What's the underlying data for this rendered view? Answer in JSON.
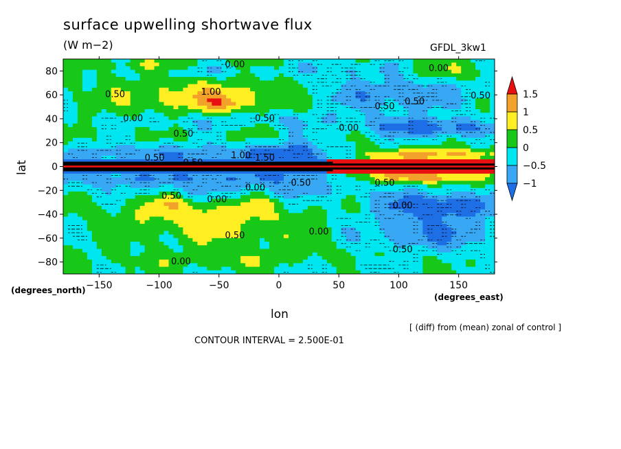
{
  "chart_data": {
    "type": "heatmap",
    "title": "surface upwelling shortwave flux",
    "units": "(W m−2)",
    "model": "GFDL_3kw1",
    "xlabel": "lon",
    "ylabel": "lat",
    "x_units": "(degrees_east)",
    "y_units": "(degrees_north)",
    "xlim": [
      -180,
      180
    ],
    "ylim": [
      -90,
      90
    ],
    "x_ticks": [
      -150,
      -100,
      -50,
      0,
      50,
      100,
      150
    ],
    "y_ticks": [
      80,
      60,
      40,
      20,
      0,
      -20,
      -40,
      -60,
      -80
    ],
    "x_tick_labels": [
      "−150",
      "−100",
      "−50",
      "0",
      "50",
      "100",
      "150"
    ],
    "y_tick_labels": [
      "80",
      "60",
      "40",
      "20",
      "0",
      "−20",
      "−40",
      "−60",
      "−80"
    ],
    "colorbar": {
      "ticks": [
        "1.5",
        "1",
        "0.5",
        "0",
        "−0.5",
        "−1"
      ],
      "levels": [
        -1.5,
        -1,
        -0.5,
        0,
        0.5,
        1,
        1.5,
        2
      ],
      "colors": [
        "#1e6ee6",
        "#38a8f4",
        "#00e6f0",
        "#18c818",
        "#ffee22",
        "#f2a22a",
        "#e81010"
      ]
    },
    "contour_labels": [
      {
        "text": "0.00",
        "lon": -45,
        "lat": 83
      },
      {
        "text": "0.00",
        "lon": 125,
        "lat": 80
      },
      {
        "text": "0.50",
        "lon": -145,
        "lat": 58
      },
      {
        "text": "1.00",
        "lon": -65,
        "lat": 60
      },
      {
        "text": "0.50",
        "lon": 105,
        "lat": 52
      },
      {
        "text": "0.50",
        "lon": 160,
        "lat": 57
      },
      {
        "text": "0.50",
        "lon": 80,
        "lat": 48
      },
      {
        "text": "0.00",
        "lon": -130,
        "lat": 38
      },
      {
        "text": "0.50",
        "lon": -20,
        "lat": 38
      },
      {
        "text": "0.00",
        "lon": 50,
        "lat": 30
      },
      {
        "text": "0.50",
        "lon": -88,
        "lat": 25
      },
      {
        "text": "0.50",
        "lon": -80,
        "lat": 1
      },
      {
        "text": "0.50",
        "lon": -112,
        "lat": 5
      },
      {
        "text": "1.00",
        "lon": -40,
        "lat": 7
      },
      {
        "text": "1.50",
        "lon": -20,
        "lat": 5
      },
      {
        "text": "0.50",
        "lon": 80,
        "lat": -16
      },
      {
        "text": "0.00",
        "lon": -28,
        "lat": -20
      },
      {
        "text": "0.50",
        "lon": 10,
        "lat": -16
      },
      {
        "text": "0.50",
        "lon": -98,
        "lat": -27
      },
      {
        "text": "0.00",
        "lon": -60,
        "lat": -30
      },
      {
        "text": "0.00",
        "lon": 95,
        "lat": -35
      },
      {
        "text": "0.50",
        "lon": -45,
        "lat": -60
      },
      {
        "text": "0.00",
        "lon": 25,
        "lat": -57
      },
      {
        "text": "0.50",
        "lon": 95,
        "lat": -72
      },
      {
        "text": "0.00",
        "lon": -90,
        "lat": -82
      }
    ]
  },
  "annotations": {
    "note": "[ (diff) from (mean) zonal of control ]",
    "contour_interval": "CONTOUR INTERVAL = 2.500E-01"
  }
}
